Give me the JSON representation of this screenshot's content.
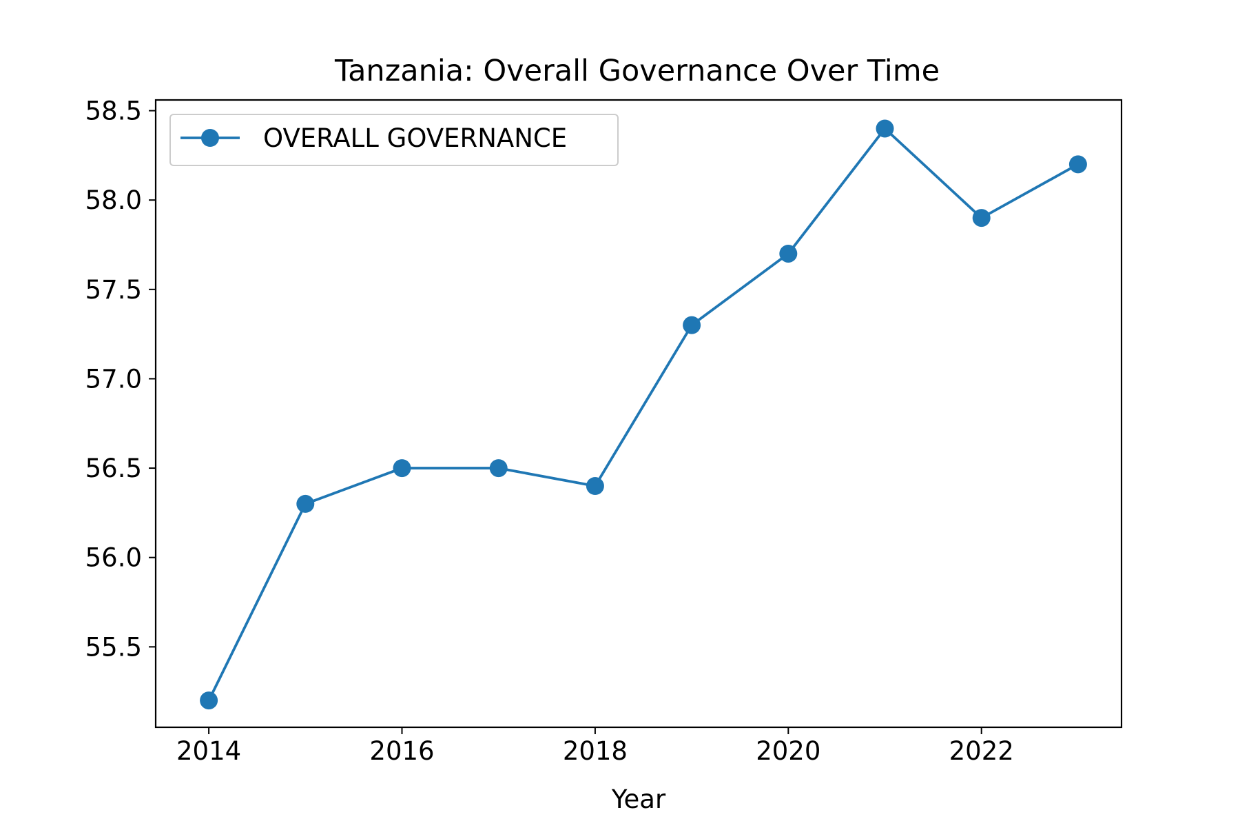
{
  "chart_data": {
    "type": "line",
    "title": "Tanzania: Overall Governance Over Time",
    "xlabel": "Year",
    "ylabel": "",
    "x": [
      2014,
      2015,
      2016,
      2017,
      2018,
      2019,
      2020,
      2021,
      2022,
      2023
    ],
    "xlim": [
      2013.45,
      2023.45
    ],
    "ylim": [
      55.05,
      58.56
    ],
    "x_ticks": [
      "2014",
      "2016",
      "2018",
      "2020",
      "2022"
    ],
    "y_ticks": [
      "55.5",
      "56.0",
      "56.5",
      "57.0",
      "57.5",
      "58.0",
      "58.5"
    ],
    "series": [
      {
        "name": "OVERALL GOVERNANCE",
        "color": "#1f77b4",
        "marker": "circle",
        "values": [
          55.2,
          56.3,
          56.5,
          56.5,
          56.4,
          57.3,
          57.7,
          58.4,
          57.9,
          58.2
        ]
      }
    ],
    "legend": {
      "position": "upper-left"
    },
    "grid": false
  }
}
